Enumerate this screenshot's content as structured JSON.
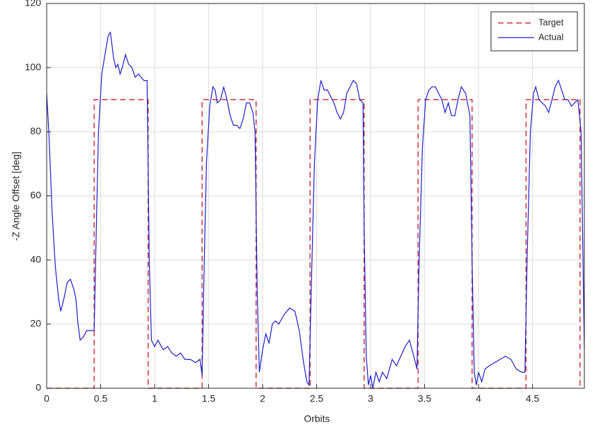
{
  "chart_data": {
    "type": "line",
    "xlabel": "Orbits",
    "ylabel": "-Z Angle Offset [deg]",
    "xlim": [
      0,
      4.98
    ],
    "ylim": [
      0,
      120
    ],
    "xticks": [
      0,
      0.5,
      1,
      1.5,
      2,
      2.5,
      3,
      3.5,
      4,
      4.5
    ],
    "yticks": [
      0,
      20,
      40,
      60,
      80,
      100,
      120
    ],
    "grid": true,
    "legend": "upper right",
    "series": [
      {
        "name": "Target",
        "color": "#c8323c",
        "dash": true,
        "x": [
          0,
          0.44,
          0.44,
          0.94,
          0.94,
          1.44,
          1.44,
          1.94,
          1.94,
          2.44,
          2.44,
          2.94,
          2.94,
          3.44,
          3.44,
          3.94,
          3.94,
          4.44,
          4.44,
          4.94,
          4.94
        ],
        "values": [
          0,
          0,
          90,
          90,
          0,
          0,
          90,
          90,
          0,
          0,
          90,
          90,
          0,
          0,
          90,
          90,
          0,
          0,
          90,
          90,
          0
        ]
      },
      {
        "name": "Actual",
        "color": "#1c1cc8",
        "dash": false,
        "x": [
          0,
          0.02,
          0.05,
          0.08,
          0.11,
          0.13,
          0.16,
          0.19,
          0.22,
          0.25,
          0.27,
          0.29,
          0.31,
          0.34,
          0.37,
          0.41,
          0.44,
          0.46,
          0.48,
          0.51,
          0.54,
          0.57,
          0.59,
          0.62,
          0.64,
          0.66,
          0.68,
          0.7,
          0.73,
          0.76,
          0.79,
          0.82,
          0.85,
          0.9,
          0.93,
          0.95,
          0.97,
          1.0,
          1.03,
          1.08,
          1.12,
          1.16,
          1.2,
          1.24,
          1.28,
          1.33,
          1.38,
          1.42,
          1.44,
          1.46,
          1.48,
          1.51,
          1.54,
          1.56,
          1.58,
          1.61,
          1.64,
          1.67,
          1.7,
          1.73,
          1.76,
          1.79,
          1.82,
          1.85,
          1.88,
          1.91,
          1.93,
          1.95,
          1.97,
          2.0,
          2.03,
          2.06,
          2.09,
          2.12,
          2.15,
          2.2,
          2.25,
          2.3,
          2.34,
          2.38,
          2.41,
          2.43,
          2.45,
          2.48,
          2.51,
          2.54,
          2.57,
          2.6,
          2.63,
          2.66,
          2.69,
          2.72,
          2.75,
          2.78,
          2.81,
          2.84,
          2.87,
          2.9,
          2.93,
          2.94,
          2.96,
          2.98,
          3.0,
          3.02,
          3.05,
          3.08,
          3.11,
          3.15,
          3.2,
          3.24,
          3.28,
          3.32,
          3.36,
          3.4,
          3.43,
          3.45,
          3.48,
          3.51,
          3.54,
          3.57,
          3.6,
          3.63,
          3.66,
          3.69,
          3.72,
          3.75,
          3.78,
          3.81,
          3.84,
          3.88,
          3.92,
          3.94,
          3.96,
          3.98,
          4.0,
          4.03,
          4.06,
          4.1,
          4.15,
          4.2,
          4.25,
          4.3,
          4.35,
          4.4,
          4.43,
          4.45,
          4.48,
          4.51,
          4.53,
          4.56,
          4.59,
          4.62,
          4.65,
          4.68,
          4.71,
          4.74,
          4.77,
          4.8,
          4.83,
          4.86,
          4.89,
          4.92,
          4.95,
          4.98
        ],
        "values": [
          92,
          80,
          55,
          38,
          28,
          24,
          28,
          33,
          34,
          31,
          28,
          20,
          15,
          16,
          18,
          18,
          18,
          50,
          80,
          98,
          104,
          110,
          111,
          103,
          100,
          101,
          98,
          100,
          104,
          101,
          100,
          97,
          98,
          96,
          96,
          40,
          15,
          13,
          15,
          12,
          13,
          11,
          10,
          11,
          9,
          9,
          8,
          9,
          4,
          40,
          70,
          88,
          94,
          93,
          89,
          90,
          94,
          90,
          85,
          82,
          82,
          81,
          84,
          89,
          89,
          86,
          80,
          30,
          5,
          12,
          17,
          14,
          20,
          21,
          20,
          23,
          25,
          24,
          18,
          8,
          2,
          1,
          30,
          70,
          90,
          96,
          93,
          93,
          91,
          89,
          86,
          84,
          86,
          92,
          94,
          96,
          95,
          90,
          89,
          50,
          10,
          1,
          4,
          0,
          5,
          2,
          5,
          3,
          9,
          7,
          10,
          13,
          15,
          10,
          6,
          40,
          75,
          90,
          93,
          94,
          94,
          92,
          90,
          86,
          89,
          85,
          85,
          90,
          94,
          92,
          85,
          40,
          5,
          1,
          5,
          2,
          6,
          7,
          8,
          9,
          10,
          9,
          6,
          5,
          5,
          40,
          80,
          92,
          94,
          90,
          89,
          88,
          86,
          90,
          94,
          96,
          93,
          90,
          90,
          88,
          89,
          90,
          80,
          12
        ]
      }
    ]
  }
}
